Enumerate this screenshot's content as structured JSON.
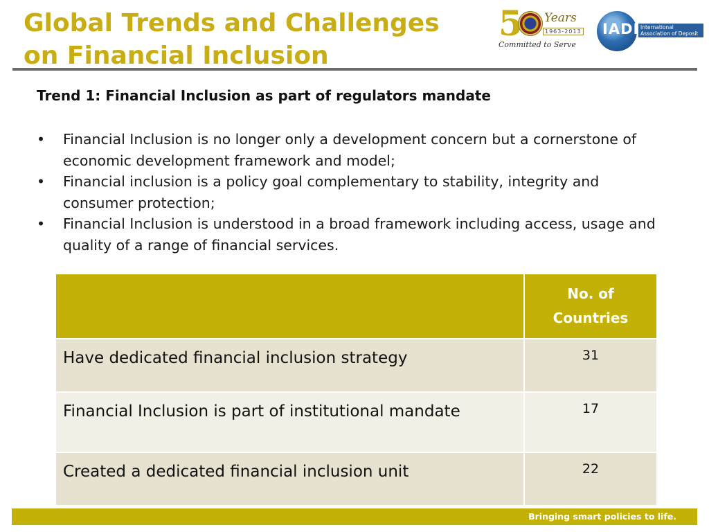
{
  "slide": {
    "title_line1": "Global Trends and Challenges",
    "title_line2": "on Financial Inclusion",
    "subtitle": "Trend 1: Financial Inclusion as part of regulators mandate"
  },
  "logos": {
    "anniversary": {
      "number": "5",
      "years": "Years",
      "range": "1963-2013",
      "motto": "Committed to Serve"
    },
    "iadi": {
      "acronym": "IADI",
      "name": "International Association of Deposit Insurers"
    }
  },
  "bullets": [
    {
      "marker": "•",
      "text": "Financial Inclusion is no longer only a development concern but a cornerstone of economic development framework and model;"
    },
    {
      "marker": "•",
      "text": "Financial inclusion is a policy goal complementary to stability, integrity and consumer protection;"
    },
    {
      "marker": "•",
      "text": "Financial Inclusion is understood in a broad framework including access, usage and quality of a range of financial services."
    }
  ],
  "table": {
    "header_blank": "",
    "header_count_line1": "No. of",
    "header_count_line2": "Countries",
    "rows": [
      {
        "label": "Have dedicated financial inclusion strategy",
        "count": "31"
      },
      {
        "label": "Financial Inclusion is part of institutional mandate",
        "count": "17"
      },
      {
        "label": "Created a dedicated financial inclusion unit",
        "count": "22"
      }
    ]
  },
  "footer": {
    "tagline": "Bringing smart policies to life."
  },
  "colors": {
    "accent": "#c4b107",
    "title": "#c8ad14",
    "rule": "#6b6b6b",
    "row_a": "#e6e2cf",
    "row_b": "#f2f0e6"
  }
}
